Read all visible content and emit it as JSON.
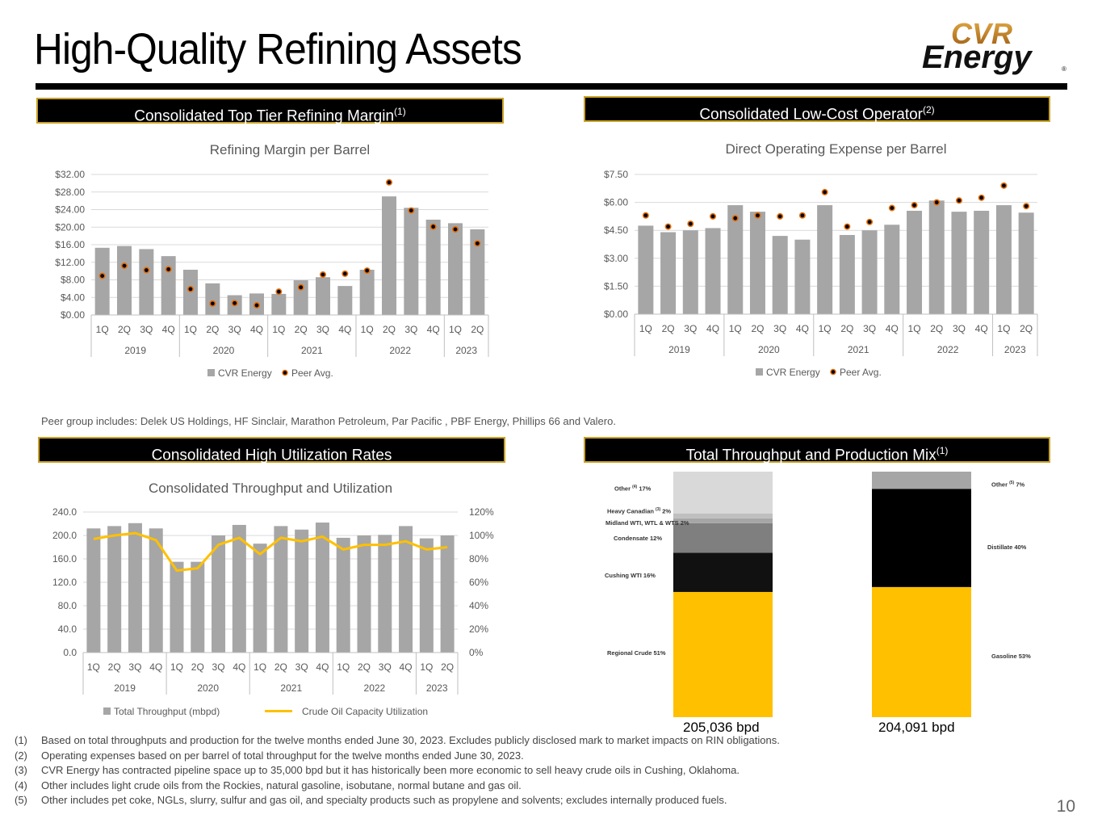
{
  "page": {
    "title": "High-Quality Refining Assets",
    "page_number": "10",
    "logo_top": "CVR",
    "logo_bottom": "Energy",
    "logo_mark": "®",
    "peer_note": "Peer group includes: Delek US Holdings, HF Sinclair, Marathon Petroleum, Par Pacific , PBF Energy, Phillips 66 and Valero."
  },
  "panels": {
    "p1": {
      "label": "Consolidated Top Tier Refining Margin",
      "sup": "(1)"
    },
    "p2": {
      "label": "Consolidated Low-Cost Operator",
      "sup": "(2)"
    },
    "p3": {
      "label": "Consolidated High Utilization Rates",
      "sup": ""
    },
    "p4": {
      "label": "Total Throughput and Production Mix",
      "sup": "(1)"
    }
  },
  "footnotes": [
    {
      "num": "(1)",
      "text": "Based on total throughputs and production for the twelve months ended June 30, 2023. Excludes publicly disclosed mark to market impacts on RIN obligations."
    },
    {
      "num": "(2)",
      "text": "Operating expenses based on per barrel of total throughput for the twelve months ended June 30, 2023."
    },
    {
      "num": "(3)",
      "text": "CVR Energy has contracted pipeline space up to 35,000 bpd but it has historically been more economic to sell heavy crude oils in Cushing, Oklahoma."
    },
    {
      "num": "(4)",
      "text": "Other includes light crude oils from the Rockies, natural gasoline, isobutane, normal butane and gas oil."
    },
    {
      "num": "(5)",
      "text": "Other includes pet coke, NGLs, slurry, sulfur and gas oil, and specialty products such as propylene and solvents; excludes internally produced fuels."
    }
  ],
  "colors": {
    "bar": "#a6a6a6",
    "peer_dot": "#000000",
    "peer_ring": "#e36c09",
    "utilization": "#ffc000",
    "header_border": "#c9a227"
  },
  "chart_data": [
    {
      "type": "bar",
      "title": "Refining Margin per Barrel",
      "categories": [
        "1Q",
        "2Q",
        "3Q",
        "4Q",
        "1Q",
        "2Q",
        "3Q",
        "4Q",
        "1Q",
        "2Q",
        "3Q",
        "4Q",
        "1Q",
        "2Q",
        "3Q",
        "4Q",
        "1Q",
        "2Q"
      ],
      "year_groups": [
        {
          "label": "2019",
          "count": 4
        },
        {
          "label": "2020",
          "count": 4
        },
        {
          "label": "2021",
          "count": 4
        },
        {
          "label": "2022",
          "count": 4
        },
        {
          "label": "2023",
          "count": 2
        }
      ],
      "series": [
        {
          "name": "CVR Energy",
          "type": "bar",
          "values": [
            15.3,
            15.7,
            15.0,
            13.4,
            10.3,
            7.2,
            4.5,
            4.9,
            4.8,
            7.9,
            8.6,
            6.6,
            10.3,
            27.0,
            24.4,
            21.7,
            20.9,
            19.5
          ]
        },
        {
          "name": "Peer Avg.",
          "type": "scatter",
          "values": [
            8.9,
            11.2,
            10.2,
            10.4,
            5.9,
            2.6,
            2.7,
            2.2,
            5.3,
            6.3,
            9.2,
            9.4,
            10.1,
            30.2,
            23.8,
            20.1,
            19.5,
            16.3
          ]
        }
      ],
      "yticks": [
        "$0.00",
        "$4.00",
        "$8.00",
        "$12.00",
        "$16.00",
        "$20.00",
        "$24.00",
        "$28.00",
        "$32.00"
      ],
      "ylim": [
        0,
        32
      ],
      "legend": "bottom"
    },
    {
      "type": "bar",
      "title": "Direct Operating Expense per Barrel",
      "categories": [
        "1Q",
        "2Q",
        "3Q",
        "4Q",
        "1Q",
        "2Q",
        "3Q",
        "4Q",
        "1Q",
        "2Q",
        "3Q",
        "4Q",
        "1Q",
        "2Q",
        "3Q",
        "4Q",
        "1Q",
        "2Q"
      ],
      "year_groups": [
        {
          "label": "2019",
          "count": 4
        },
        {
          "label": "2020",
          "count": 4
        },
        {
          "label": "2021",
          "count": 4
        },
        {
          "label": "2022",
          "count": 4
        },
        {
          "label": "2023",
          "count": 2
        }
      ],
      "series": [
        {
          "name": "CVR Energy",
          "type": "bar",
          "values": [
            4.75,
            4.4,
            4.5,
            4.62,
            5.85,
            5.5,
            4.2,
            4.0,
            5.85,
            4.25,
            4.5,
            4.8,
            5.55,
            6.1,
            5.5,
            5.55,
            5.85,
            5.45
          ]
        },
        {
          "name": "Peer Avg.",
          "type": "scatter",
          "values": [
            5.3,
            4.7,
            4.85,
            5.25,
            5.15,
            5.3,
            5.25,
            5.3,
            6.55,
            4.7,
            4.95,
            5.7,
            5.85,
            6.0,
            6.1,
            6.25,
            6.9,
            5.8
          ]
        }
      ],
      "yticks": [
        "$0.00",
        "$1.50",
        "$3.00",
        "$4.50",
        "$6.00",
        "$7.50"
      ],
      "ylim": [
        0,
        7.5
      ],
      "legend": "bottom"
    },
    {
      "type": "bar",
      "title": "Consolidated Throughput and Utilization",
      "categories": [
        "1Q",
        "2Q",
        "3Q",
        "4Q",
        "1Q",
        "2Q",
        "3Q",
        "4Q",
        "1Q",
        "2Q",
        "3Q",
        "4Q",
        "1Q",
        "2Q",
        "3Q",
        "4Q",
        "1Q",
        "2Q"
      ],
      "year_groups": [
        {
          "label": "2019",
          "count": 4
        },
        {
          "label": "2020",
          "count": 4
        },
        {
          "label": "2021",
          "count": 4
        },
        {
          "label": "2022",
          "count": 4
        },
        {
          "label": "2023",
          "count": 2
        }
      ],
      "series": [
        {
          "name": "Total Throughput (mbpd)",
          "type": "bar",
          "axis": "left",
          "values": [
            212,
            216,
            221,
            212,
            155,
            155,
            200,
            218,
            186,
            216,
            210,
            222,
            196,
            200,
            201,
            216,
            195,
            200
          ]
        },
        {
          "name": "Crude Oil Capacity Utilization",
          "type": "line",
          "axis": "right",
          "values": [
            97,
            100,
            102,
            96,
            70,
            72,
            92,
            98,
            84,
            98,
            95,
            99,
            88,
            92,
            92,
            95,
            88,
            90
          ]
        }
      ],
      "yticks_left": [
        "0.0",
        "40.0",
        "80.0",
        "120.0",
        "160.0",
        "200.0",
        "240.0"
      ],
      "ylim_left": [
        0,
        240
      ],
      "yticks_right": [
        "0%",
        "20%",
        "40%",
        "60%",
        "80%",
        "100%",
        "120%"
      ],
      "ylim_right": [
        0,
        120
      ],
      "legend": "bottom"
    },
    {
      "type": "stacked-bar",
      "bars": [
        {
          "total_label": "205,036 bpd",
          "segments": [
            {
              "label": "Regional Crude 51%",
              "value": 51,
              "color": "#ffc000"
            },
            {
              "label": "Cushing WTI  16%",
              "value": 16,
              "color": "#111111"
            },
            {
              "label": "Condensate 12%",
              "value": 12,
              "color": "#7f7f7f"
            },
            {
              "label": "Midland WTI, WTL & WTS 2%",
              "value": 2,
              "color": "#a6a6a6"
            },
            {
              "label": "Heavy Canadian",
              "sup": "(3)",
              "suffix": " 2%",
              "value": 2,
              "color": "#bfbfbf"
            },
            {
              "label": "Other",
              "sup": "(4)",
              "suffix": " 17%",
              "value": 17,
              "color": "#d9d9d9"
            }
          ]
        },
        {
          "total_label": "204,091 bpd",
          "segments": [
            {
              "label": "Gasoline  53%",
              "value": 53,
              "color": "#ffc000"
            },
            {
              "label": "Distillate 40%",
              "value": 40,
              "color": "#000000"
            },
            {
              "label": "Other",
              "sup": "(5)",
              "suffix": " 7%",
              "value": 7,
              "color": "#a6a6a6"
            }
          ]
        }
      ]
    }
  ]
}
